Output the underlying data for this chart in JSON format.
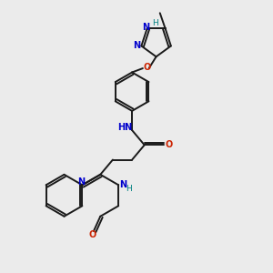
{
  "bg_color": "#ebebeb",
  "bond_color": "#1a1a1a",
  "N_color": "#0000cc",
  "O_color": "#cc2200",
  "H_color": "#008080",
  "figsize": [
    3.0,
    3.0
  ],
  "dpi": 100,
  "xlim": [
    0,
    10
  ],
  "ylim": [
    0,
    10
  ]
}
